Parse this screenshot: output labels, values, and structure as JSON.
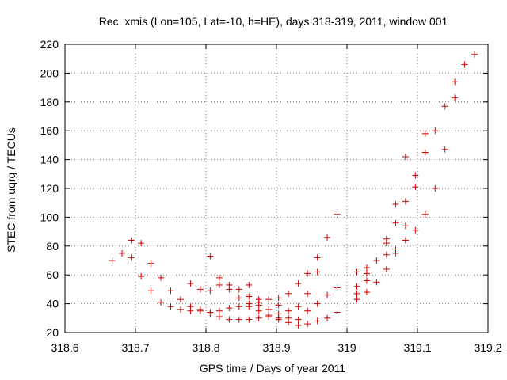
{
  "chart_data": {
    "type": "scatter",
    "title": "Rec. xmis (Lon=105, Lat=-10, h=HE), days 318-319, 2011, window 001",
    "xlabel": "GPS time / Days of year 2011",
    "ylabel": "STEC from uqrg / TECUs",
    "xlim": [
      318.6,
      319.2
    ],
    "ylim": [
      20,
      220
    ],
    "xticks": [
      "318.6",
      "318.7",
      "318.8",
      "318.9",
      "319",
      "319.1",
      "319.2"
    ],
    "yticks": [
      "20",
      "40",
      "60",
      "80",
      "100",
      "120",
      "140",
      "160",
      "180",
      "200",
      "220"
    ],
    "grid": true,
    "marker": "+",
    "color": "#cc0000",
    "points": [
      [
        318.667,
        70
      ],
      [
        318.681,
        75
      ],
      [
        318.694,
        84
      ],
      [
        318.694,
        72
      ],
      [
        318.708,
        82
      ],
      [
        318.708,
        59
      ],
      [
        318.722,
        68
      ],
      [
        318.722,
        49
      ],
      [
        318.736,
        58
      ],
      [
        318.736,
        41
      ],
      [
        318.75,
        49
      ],
      [
        318.75,
        38
      ],
      [
        318.764,
        43
      ],
      [
        318.764,
        36
      ],
      [
        318.778,
        54
      ],
      [
        318.778,
        38
      ],
      [
        318.778,
        35
      ],
      [
        318.792,
        50
      ],
      [
        318.792,
        36
      ],
      [
        318.792,
        35
      ],
      [
        318.806,
        73
      ],
      [
        318.806,
        49
      ],
      [
        318.806,
        34
      ],
      [
        318.806,
        33
      ],
      [
        318.819,
        58
      ],
      [
        318.819,
        53
      ],
      [
        318.819,
        35
      ],
      [
        318.819,
        31
      ],
      [
        318.833,
        53
      ],
      [
        318.833,
        50
      ],
      [
        318.833,
        37
      ],
      [
        318.833,
        29
      ],
      [
        318.847,
        50
      ],
      [
        318.847,
        44
      ],
      [
        318.847,
        38
      ],
      [
        318.847,
        29
      ],
      [
        318.861,
        53
      ],
      [
        318.861,
        45
      ],
      [
        318.861,
        40
      ],
      [
        318.861,
        38
      ],
      [
        318.861,
        29
      ],
      [
        318.875,
        43
      ],
      [
        318.875,
        41
      ],
      [
        318.875,
        39
      ],
      [
        318.875,
        35
      ],
      [
        318.875,
        30
      ],
      [
        318.889,
        43
      ],
      [
        318.889,
        36
      ],
      [
        318.889,
        32
      ],
      [
        318.889,
        31
      ],
      [
        318.903,
        44
      ],
      [
        318.903,
        39
      ],
      [
        318.903,
        33
      ],
      [
        318.903,
        30
      ],
      [
        318.903,
        29
      ],
      [
        318.917,
        47
      ],
      [
        318.917,
        35
      ],
      [
        318.917,
        30
      ],
      [
        318.917,
        27
      ],
      [
        318.931,
        54
      ],
      [
        318.931,
        38
      ],
      [
        318.931,
        29
      ],
      [
        318.931,
        25
      ],
      [
        318.944,
        61
      ],
      [
        318.944,
        47
      ],
      [
        318.944,
        35
      ],
      [
        318.944,
        26
      ],
      [
        318.958,
        72
      ],
      [
        318.958,
        62
      ],
      [
        318.958,
        40
      ],
      [
        318.958,
        28
      ],
      [
        318.972,
        86
      ],
      [
        318.972,
        46
      ],
      [
        318.972,
        30
      ],
      [
        318.986,
        102
      ],
      [
        318.986,
        51
      ],
      [
        318.986,
        34
      ],
      [
        319.014,
        62
      ],
      [
        319.014,
        52
      ],
      [
        319.014,
        47
      ],
      [
        319.014,
        43
      ],
      [
        319.028,
        65
      ],
      [
        319.028,
        61
      ],
      [
        319.028,
        56
      ],
      [
        319.028,
        48
      ],
      [
        319.042,
        70
      ],
      [
        319.042,
        55
      ],
      [
        319.056,
        85
      ],
      [
        319.056,
        82
      ],
      [
        319.056,
        74
      ],
      [
        319.056,
        64
      ],
      [
        319.069,
        109
      ],
      [
        319.069,
        96
      ],
      [
        319.069,
        78
      ],
      [
        319.069,
        75
      ],
      [
        319.083,
        142
      ],
      [
        319.083,
        111
      ],
      [
        319.083,
        94
      ],
      [
        319.083,
        84
      ],
      [
        319.097,
        129
      ],
      [
        319.097,
        121
      ],
      [
        319.097,
        91
      ],
      [
        319.111,
        158
      ],
      [
        319.111,
        145
      ],
      [
        319.111,
        102
      ],
      [
        319.125,
        160
      ],
      [
        319.125,
        120
      ],
      [
        319.139,
        177
      ],
      [
        319.139,
        147
      ],
      [
        319.153,
        194
      ],
      [
        319.153,
        183
      ],
      [
        319.167,
        206
      ],
      [
        319.181,
        213
      ]
    ]
  }
}
